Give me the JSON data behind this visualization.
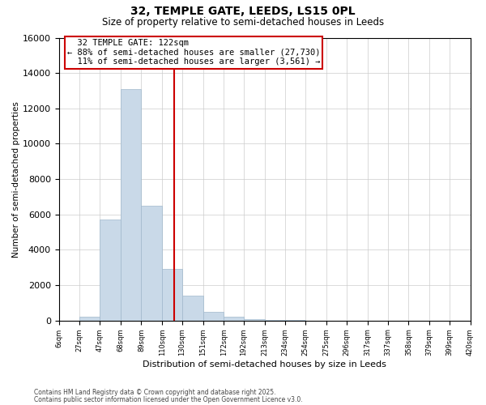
{
  "title": "32, TEMPLE GATE, LEEDS, LS15 0PL",
  "subtitle": "Size of property relative to semi-detached houses in Leeds",
  "xlabel": "Distribution of semi-detached houses by size in Leeds",
  "ylabel": "Number of semi-detached properties",
  "property_size": 122,
  "property_label": "32 TEMPLE GATE: 122sqm",
  "pct_smaller": 88,
  "pct_larger": 11,
  "count_smaller": "27,730",
  "count_larger": "3,561",
  "bar_color": "#c9d9e8",
  "bar_edge_color": "#a0b8cc",
  "vline_color": "#cc0000",
  "annotation_box_color": "#cc0000",
  "background_color": "#ffffff",
  "bins": [
    6,
    27,
    47,
    68,
    89,
    110,
    130,
    151,
    172,
    192,
    213,
    234,
    254,
    275,
    296,
    317,
    337,
    358,
    379,
    399,
    420
  ],
  "bin_labels": [
    "6sqm",
    "27sqm",
    "47sqm",
    "68sqm",
    "89sqm",
    "110sqm",
    "130sqm",
    "151sqm",
    "172sqm",
    "192sqm",
    "213sqm",
    "234sqm",
    "254sqm",
    "275sqm",
    "296sqm",
    "317sqm",
    "337sqm",
    "358sqm",
    "379sqm",
    "399sqm",
    "420sqm"
  ],
  "counts": [
    0,
    200,
    5700,
    13100,
    6500,
    2900,
    1400,
    500,
    200,
    100,
    50,
    20,
    10,
    5,
    2,
    1,
    1,
    0,
    0,
    0
  ],
  "ylim": [
    0,
    16000
  ],
  "yticks": [
    0,
    2000,
    4000,
    6000,
    8000,
    10000,
    12000,
    14000,
    16000
  ],
  "footnote1": "Contains HM Land Registry data © Crown copyright and database right 2025.",
  "footnote2": "Contains public sector information licensed under the Open Government Licence v3.0."
}
